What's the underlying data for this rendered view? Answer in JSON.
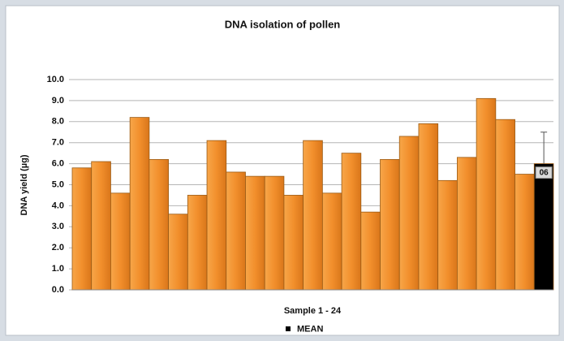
{
  "chart_data": {
    "type": "bar",
    "title": "DNA isolation of pollen",
    "x_label": "Sample 1 - 24",
    "y_label": "DNA  yield (µg)",
    "categories": [
      null,
      null,
      null,
      null,
      null,
      null,
      null,
      null,
      null,
      null,
      null,
      null,
      null,
      null,
      null,
      null,
      null,
      null,
      null,
      null,
      null,
      null,
      null,
      null
    ],
    "values": [
      5.8,
      6.1,
      4.6,
      8.2,
      6.2,
      3.6,
      4.5,
      7.1,
      5.6,
      5.4,
      5.4,
      4.5,
      7.1,
      4.6,
      6.5,
      3.7,
      6.2,
      7.3,
      7.9,
      5.2,
      6.3,
      9.1,
      8.1,
      5.5
    ],
    "color": "#f28f2c",
    "mean": {
      "name": "MEAN",
      "value": 6.0,
      "error": 1.5,
      "value_label": "06",
      "color": "#000000"
    },
    "ylim": [
      0,
      10
    ],
    "yticks": [
      {
        "value": 0,
        "label": "0.0"
      },
      {
        "value": 1,
        "label": "1.0"
      },
      {
        "value": 2,
        "label": "2.0"
      },
      {
        "value": 3,
        "label": "3.0"
      },
      {
        "value": 4,
        "label": "4.0"
      },
      {
        "value": 5,
        "label": "5.0"
      },
      {
        "value": 6,
        "label": "6.0"
      },
      {
        "value": 7,
        "label": "7.0"
      },
      {
        "value": 8,
        "label": "8.0"
      },
      {
        "value": 9,
        "label": "9.0"
      },
      {
        "value": 10,
        "label": "10.0"
      }
    ],
    "grid": true,
    "legend": "bottom"
  }
}
